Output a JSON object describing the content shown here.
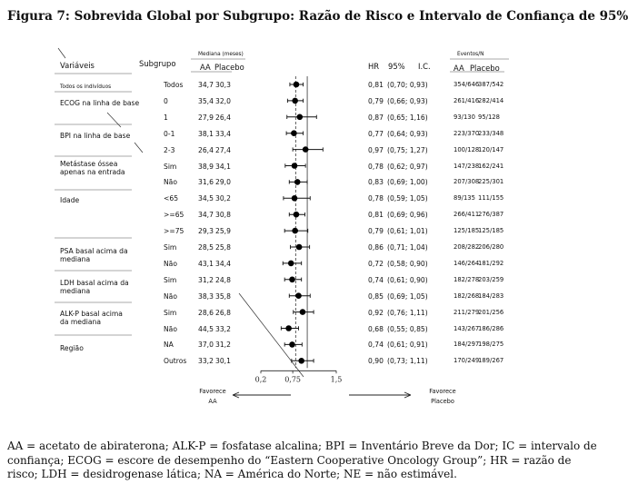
{
  "figure_title": "Figura 7: Sobrevida Global por Subgrupo: Razão de Risco e Intervalo de Confiança de 95%",
  "headers": {
    "variaveis": "Variáveis",
    "subgrupo": "Subgrupo",
    "mediana": "Mediana (meses)",
    "aa": "AA",
    "placebo": "Placebo",
    "hr": "HR",
    "ci95": "95%",
    "ic": "I.C.",
    "eventos": "Eventos/N",
    "ev_aa": "AA",
    "ev_placebo": "Placebo"
  },
  "variables": [
    {
      "label": "Todos os indivíduos",
      "row": 0
    },
    {
      "label": "ECOG na linha de base",
      "row": 1
    },
    {
      "label": "BPI na linha de base",
      "row": 3
    },
    {
      "label": "Metástase óssea apenas na entrada",
      "row": 5
    },
    {
      "label": "Idade",
      "row": 7
    },
    {
      "label": "PSA basal acima da mediana",
      "row": 10
    },
    {
      "label": "LDH basal acima da mediana",
      "row": 12
    },
    {
      "label": "ALK-P basal acima da mediana",
      "row": 14
    },
    {
      "label": "Região",
      "row": 16
    }
  ],
  "axis": {
    "ticks": [
      "0,2",
      "0,75",
      "1,5"
    ],
    "left_label": "Favorece AA",
    "right_label": "Favorece Placebo"
  },
  "chart_data": {
    "type": "forest",
    "x_axis": {
      "min": 0.2,
      "max": 1.5,
      "ticks": [
        0.2,
        0.75,
        1.5
      ],
      "reference_line": 1.0,
      "dashed_line": 0.8
    },
    "rows": [
      {
        "subgroup": "Todos",
        "median_aa": "34,7",
        "median_placebo": "30,3",
        "hr_text": "0,81",
        "ci_text": "(0,70; 0,93)",
        "events_aa": "354/646",
        "events_placebo": "387/542",
        "hr": 0.81,
        "ci_low": 0.7,
        "ci_high": 0.93
      },
      {
        "subgroup": "0",
        "median_aa": "35,4",
        "median_placebo": "32,0",
        "hr_text": "0,79",
        "ci_text": "(0,66; 0,93)",
        "events_aa": "261/416",
        "events_placebo": "282/414",
        "hr": 0.79,
        "ci_low": 0.66,
        "ci_high": 0.93
      },
      {
        "subgroup": "1",
        "median_aa": "27,9",
        "median_placebo": "26,4",
        "hr_text": "0,87",
        "ci_text": "(0,65; 1,16)",
        "events_aa": "93/130",
        "events_placebo": "95/128",
        "hr": 0.87,
        "ci_low": 0.65,
        "ci_high": 1.16
      },
      {
        "subgroup": "0-1",
        "median_aa": "38,1",
        "median_placebo": "33,4",
        "hr_text": "0,77",
        "ci_text": "(0,64; 0,93)",
        "events_aa": "223/370",
        "events_placebo": "233/348",
        "hr": 0.77,
        "ci_low": 0.64,
        "ci_high": 0.93
      },
      {
        "subgroup": "2-3",
        "median_aa": "26,4",
        "median_placebo": "27,4",
        "hr_text": "0,97",
        "ci_text": "(0,75; 1,27)",
        "events_aa": "100/128",
        "events_placebo": "120/147",
        "hr": 0.97,
        "ci_low": 0.75,
        "ci_high": 1.27
      },
      {
        "subgroup": "Sim",
        "median_aa": "38,9",
        "median_placebo": "34,1",
        "hr_text": "0,78",
        "ci_text": "(0,62; 0,97)",
        "events_aa": "147/238",
        "events_placebo": "162/241",
        "hr": 0.78,
        "ci_low": 0.62,
        "ci_high": 0.97
      },
      {
        "subgroup": "Não",
        "median_aa": "31,6",
        "median_placebo": "29,0",
        "hr_text": "0,83",
        "ci_text": "(0,69; 1,00)",
        "events_aa": "207/308",
        "events_placebo": "225/301",
        "hr": 0.83,
        "ci_low": 0.69,
        "ci_high": 1.0
      },
      {
        "subgroup": "<65",
        "median_aa": "34,5",
        "median_placebo": "30,2",
        "hr_text": "0,78",
        "ci_text": "(0,59; 1,05)",
        "events_aa": "89/135",
        "events_placebo": "111/155",
        "hr": 0.78,
        "ci_low": 0.59,
        "ci_high": 1.05
      },
      {
        "subgroup": ">=65",
        "median_aa": "34,7",
        "median_placebo": "30,8",
        "hr_text": "0,81",
        "ci_text": "(0,69; 0,96)",
        "events_aa": "266/411",
        "events_placebo": "276/387",
        "hr": 0.81,
        "ci_low": 0.69,
        "ci_high": 0.96
      },
      {
        "subgroup": ">=75",
        "median_aa": "29,3",
        "median_placebo": "25,9",
        "hr_text": "0,79",
        "ci_text": "(0,61; 1,01)",
        "events_aa": "125/185",
        "events_placebo": "125/185",
        "hr": 0.79,
        "ci_low": 0.61,
        "ci_high": 1.01
      },
      {
        "subgroup": "Sim",
        "median_aa": "28,5",
        "median_placebo": "25,8",
        "hr_text": "0,86",
        "ci_text": "(0,71; 1,04)",
        "events_aa": "208/282",
        "events_placebo": "206/280",
        "hr": 0.86,
        "ci_low": 0.71,
        "ci_high": 1.04
      },
      {
        "subgroup": "Não",
        "median_aa": "43,1",
        "median_placebo": "34,4",
        "hr_text": "0,72",
        "ci_text": "(0,58; 0,90)",
        "events_aa": "146/264",
        "events_placebo": "181/292",
        "hr": 0.72,
        "ci_low": 0.58,
        "ci_high": 0.9
      },
      {
        "subgroup": "Sim",
        "median_aa": "31,2",
        "median_placebo": "24,8",
        "hr_text": "0,74",
        "ci_text": "(0,61; 0,90)",
        "events_aa": "182/278",
        "events_placebo": "203/259",
        "hr": 0.74,
        "ci_low": 0.61,
        "ci_high": 0.9
      },
      {
        "subgroup": "Não",
        "median_aa": "38,3",
        "median_placebo": "35,8",
        "hr_text": "0,85",
        "ci_text": "(0,69; 1,05)",
        "events_aa": "182/268",
        "events_placebo": "184/283",
        "hr": 0.85,
        "ci_low": 0.69,
        "ci_high": 1.05
      },
      {
        "subgroup": "Sim",
        "median_aa": "28,6",
        "median_placebo": "26,8",
        "hr_text": "0,92",
        "ci_text": "(0,76; 1,11)",
        "events_aa": "211/279",
        "events_placebo": "201/256",
        "hr": 0.92,
        "ci_low": 0.76,
        "ci_high": 1.11
      },
      {
        "subgroup": "Não",
        "median_aa": "44,5",
        "median_placebo": "33,2",
        "hr_text": "0,68",
        "ci_text": "(0,55; 0,85)",
        "events_aa": "143/267",
        "events_placebo": "186/286",
        "hr": 0.68,
        "ci_low": 0.55,
        "ci_high": 0.85
      },
      {
        "subgroup": "NA",
        "median_aa": "37,0",
        "median_placebo": "31,2",
        "hr_text": "0,74",
        "ci_text": "(0,61; 0,91)",
        "events_aa": "184/297",
        "events_placebo": "198/275",
        "hr": 0.74,
        "ci_low": 0.61,
        "ci_high": 0.91
      },
      {
        "subgroup": "Outros",
        "median_aa": "33,2",
        "median_placebo": "30,1",
        "hr_text": "0,90",
        "ci_text": "(0,73; 1,11)",
        "events_aa": "170/249",
        "events_placebo": "189/267",
        "hr": 0.9,
        "ci_low": 0.73,
        "ci_high": 1.11
      }
    ]
  },
  "footnote": "AA = acetato de abiraterona; ALK-P = fosfatase alcalina; BPI = Inventário Breve da Dor; IC = intervalo de confiança; ECOG = escore de desempenho do “Eastern Cooperative Oncology Group”; HR = razão de risco; LDH = desidrogenase lática; NA = América do Norte; NE = não estimável."
}
